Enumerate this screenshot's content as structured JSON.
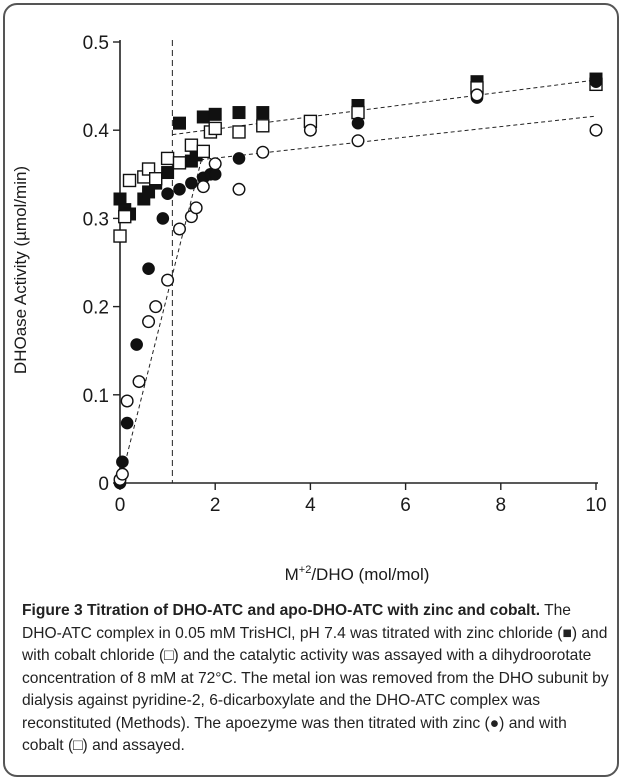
{
  "chart_data": {
    "type": "scatter",
    "xlabel": "M+2/DHO (mol/mol)",
    "xlabel_main": "M",
    "xlabel_sup": "+2",
    "xlabel_rest": "/DHO (mol/mol)",
    "ylabel": "DHOase Activity (µmol/min)",
    "xlim": [
      0,
      10
    ],
    "ylim": [
      0,
      0.5
    ],
    "xticks": [
      0,
      2,
      4,
      6,
      8,
      10
    ],
    "yticks": [
      0,
      0.1,
      0.2,
      0.3,
      0.4,
      0.5
    ],
    "ytick_labels": [
      "0",
      "0.1",
      "0.2",
      "0.3",
      "0.4",
      "0.5"
    ],
    "grid": false,
    "legend": "none",
    "series": [
      {
        "marker": "filled-square",
        "points": [
          [
            0,
            0.322
          ],
          [
            0.1,
            0.31
          ],
          [
            0.2,
            0.305
          ],
          [
            0.5,
            0.322
          ],
          [
            0.6,
            0.33
          ],
          [
            0.75,
            0.34
          ],
          [
            1,
            0.352
          ],
          [
            1.25,
            0.408
          ],
          [
            1.5,
            0.365
          ],
          [
            1.6,
            0.372
          ],
          [
            1.75,
            0.415
          ],
          [
            2,
            0.418
          ],
          [
            2.5,
            0.42
          ],
          [
            3,
            0.42
          ],
          [
            5,
            0.428
          ],
          [
            7.5,
            0.455
          ],
          [
            10,
            0.458
          ]
        ]
      },
      {
        "marker": "open-square",
        "points": [
          [
            0,
            0.28
          ],
          [
            0.1,
            0.302
          ],
          [
            0.2,
            0.343
          ],
          [
            0.5,
            0.347
          ],
          [
            0.6,
            0.356
          ],
          [
            0.75,
            0.345
          ],
          [
            1,
            0.368
          ],
          [
            1.25,
            0.363
          ],
          [
            1.5,
            0.383
          ],
          [
            1.75,
            0.376
          ],
          [
            1.9,
            0.398
          ],
          [
            2,
            0.402
          ],
          [
            2.5,
            0.398
          ],
          [
            3,
            0.405
          ],
          [
            4,
            0.41
          ],
          [
            5,
            0.42
          ],
          [
            7.5,
            0.448
          ],
          [
            10,
            0.452
          ]
        ]
      },
      {
        "marker": "filled-circle",
        "points": [
          [
            0,
            0
          ],
          [
            0.05,
            0.024
          ],
          [
            0.15,
            0.068
          ],
          [
            0.35,
            0.157
          ],
          [
            0.6,
            0.243
          ],
          [
            0.9,
            0.3
          ],
          [
            1,
            0.328
          ],
          [
            1.25,
            0.333
          ],
          [
            1.5,
            0.34
          ],
          [
            1.75,
            0.346
          ],
          [
            1.9,
            0.35
          ],
          [
            2,
            0.35
          ],
          [
            2.5,
            0.368
          ],
          [
            5,
            0.408
          ],
          [
            7.5,
            0.437
          ],
          [
            10,
            0.455
          ]
        ]
      },
      {
        "marker": "open-circle",
        "points": [
          [
            0,
            0.004
          ],
          [
            0.05,
            0.01
          ],
          [
            0.15,
            0.093
          ],
          [
            0.4,
            0.115
          ],
          [
            0.6,
            0.183
          ],
          [
            0.75,
            0.2
          ],
          [
            1,
            0.23
          ],
          [
            1.25,
            0.288
          ],
          [
            1.5,
            0.302
          ],
          [
            1.6,
            0.312
          ],
          [
            1.75,
            0.336
          ],
          [
            2,
            0.362
          ],
          [
            2.5,
            0.333
          ],
          [
            3,
            0.375
          ],
          [
            4,
            0.4
          ],
          [
            5,
            0.388
          ],
          [
            7.5,
            0.44
          ],
          [
            10,
            0.4
          ]
        ]
      }
    ],
    "fit_lines": [
      {
        "from": [
          1.1,
          0.395
        ],
        "to": [
          10,
          0.457
        ]
      },
      {
        "from": [
          1.1,
          0.363
        ],
        "to": [
          10,
          0.416
        ]
      },
      {
        "from": [
          0,
          0
        ],
        "to": [
          1.75,
          0.375
        ]
      }
    ],
    "vline_x": 1.1
  },
  "caption": {
    "title": "Figure 3 Titration of DHO-ATC and apo-DHO-ATC with zinc and cobalt.",
    "body": " The DHO-ATC complex in 0.05 mM TrisHCl, pH 7.4 was titrated with zinc chloride (■) and with cobalt chloride (□) and the catalytic activity was assayed with a dihydroorotate concentration of 8 mM at 72°C. The metal ion was removed from the DHO subunit by dialysis against pyridine-2, 6-dicarboxylate and the DHO-ATC complex was reconstituted (Methods). The apoezyme was then titrated with zinc (●) and with cobalt (□) and assayed."
  }
}
